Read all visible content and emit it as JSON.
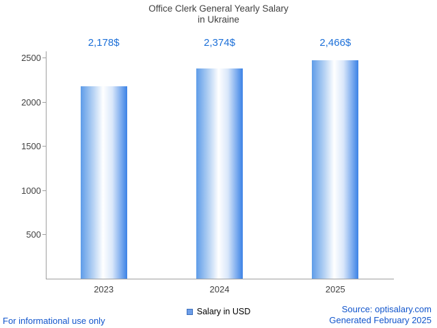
{
  "chart": {
    "title_line1": "Office Clerk General Yearly Salary",
    "title_line2": "in Ukraine"
  },
  "chart_data": {
    "type": "bar",
    "title": "Office Clerk General Yearly Salary in Ukraine",
    "categories": [
      "2023",
      "2024",
      "2025"
    ],
    "values": [
      2178,
      2374,
      2466
    ],
    "value_labels": [
      "2,178$",
      "2,374$",
      "2,466$"
    ],
    "xlabel": "",
    "ylabel": "",
    "ylim": [
      0,
      2500
    ],
    "yticks": [
      500,
      1000,
      1500,
      2000,
      2500
    ],
    "legend": [
      "Salary in USD"
    ],
    "legend_position": "bottom",
    "grid": false,
    "colors": {
      "bar_edge": "#3b82e6",
      "bar_center": "#ffffff",
      "value_label": "#1b6fd8",
      "axis": "#9e9e9e",
      "title": "#404040",
      "footer_text": "#1155cc"
    }
  },
  "footer": {
    "left_note": "For informational use only",
    "legend_label": "Salary in USD",
    "source_line1": "Source: optisalary.com",
    "source_line2": "Generated February 2025"
  }
}
